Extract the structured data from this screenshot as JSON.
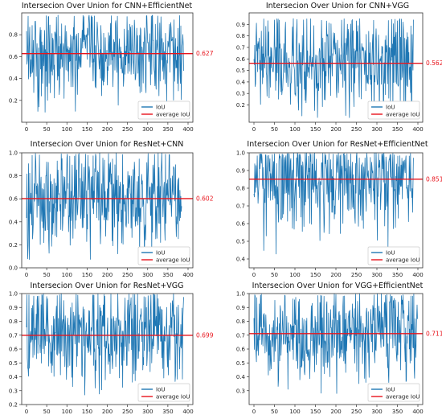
{
  "style": {
    "series_color": "#1f77b4",
    "average_color": "#e8141c",
    "average_label_color": "#e8141c"
  },
  "legend": {
    "series_label": "IoU",
    "average_label": "average IoU",
    "placement": "lower-right"
  },
  "chart_data": [
    {
      "type": "line",
      "title": "Intersecion Over Union for CNN+EfficientNet",
      "xlabel": "",
      "ylabel": "",
      "xlim": [
        0,
        400
      ],
      "ylim": [
        0.0,
        1.0
      ],
      "xticks": [
        "0",
        "50",
        "100",
        "150",
        "200",
        "250",
        "300",
        "350",
        "400"
      ],
      "yticks": [
        "0.2",
        "0.4",
        "0.6",
        "0.8"
      ],
      "average": 0.627,
      "average_label": "0.627",
      "n_points": 390,
      "min_value": 0.08,
      "max_value": 0.98,
      "series": [
        {
          "name": "IoU"
        },
        {
          "name": "average IoU"
        }
      ]
    },
    {
      "type": "line",
      "title": "Intersecion Over Union for CNN+VGG",
      "xlabel": "",
      "ylabel": "",
      "xlim": [
        0,
        400
      ],
      "ylim": [
        0.05,
        1.0
      ],
      "xticks": [
        "0",
        "50",
        "100",
        "150",
        "200",
        "250",
        "300",
        "350",
        "400"
      ],
      "yticks": [
        "0.2",
        "0.3",
        "0.4",
        "0.5",
        "0.6",
        "0.7",
        "0.8",
        "0.9"
      ],
      "average": 0.562,
      "average_label": "0.562",
      "n_points": 390,
      "min_value": 0.08,
      "max_value": 0.95,
      "series": [
        {
          "name": "IoU"
        },
        {
          "name": "average IoU"
        }
      ]
    },
    {
      "type": "line",
      "title": "Intersecion Over Union for ResNet+CNN",
      "xlabel": "",
      "ylabel": "",
      "xlim": [
        0,
        400
      ],
      "ylim": [
        0.0,
        1.0
      ],
      "xticks": [
        "0",
        "50",
        "100",
        "150",
        "200",
        "250",
        "300",
        "350",
        "400"
      ],
      "yticks": [
        "0.0",
        "0.2",
        "0.4",
        "0.6",
        "0.8",
        "1.0"
      ],
      "average": 0.602,
      "average_label": "0.602",
      "n_points": 385,
      "min_value": 0.05,
      "max_value": 1.0,
      "series": [
        {
          "name": "IoU"
        },
        {
          "name": "average IoU"
        }
      ]
    },
    {
      "type": "line",
      "title": "Intersecion Over Union for ResNet+EfficientNet",
      "xlabel": "",
      "ylabel": "",
      "xlim": [
        0,
        400
      ],
      "ylim": [
        0.35,
        1.0
      ],
      "xticks": [
        "0",
        "50",
        "100",
        "150",
        "200",
        "250",
        "300",
        "350",
        "400"
      ],
      "yticks": [
        "0.4",
        "0.5",
        "0.6",
        "0.7",
        "0.8",
        "0.9",
        "1.0"
      ],
      "average": 0.851,
      "average_label": "0.851",
      "n_points": 390,
      "min_value": 0.38,
      "max_value": 1.0,
      "series": [
        {
          "name": "IoU"
        },
        {
          "name": "average IoU"
        }
      ]
    },
    {
      "type": "line",
      "title": "Intersecion Over Union for ResNet+VGG",
      "xlabel": "",
      "ylabel": "",
      "xlim": [
        0,
        400
      ],
      "ylim": [
        0.2,
        1.0
      ],
      "xticks": [
        "0",
        "50",
        "100",
        "150",
        "200",
        "250",
        "300",
        "350",
        "400"
      ],
      "yticks": [
        "0.2",
        "0.3",
        "0.4",
        "0.5",
        "0.6",
        "0.7",
        "0.8",
        "0.9",
        "1.0"
      ],
      "average": 0.699,
      "average_label": "0.699",
      "n_points": 390,
      "min_value": 0.25,
      "max_value": 1.0,
      "series": [
        {
          "name": "IoU"
        },
        {
          "name": "average IoU"
        }
      ]
    },
    {
      "type": "line",
      "title": "Intersecion Over Union for VGG+EfficientNet",
      "xlabel": "",
      "ylabel": "",
      "xlim": [
        0,
        400
      ],
      "ylim": [
        0.2,
        1.0
      ],
      "xticks": [
        "0",
        "50",
        "100",
        "150",
        "200",
        "250",
        "300",
        "350",
        "400"
      ],
      "yticks": [
        "0.3",
        "0.4",
        "0.5",
        "0.6",
        "0.7",
        "0.8",
        "0.9",
        "1.0"
      ],
      "average": 0.711,
      "average_label": "0.711",
      "n_points": 400,
      "min_value": 0.26,
      "max_value": 1.0,
      "series": [
        {
          "name": "IoU"
        },
        {
          "name": "average IoU"
        }
      ]
    }
  ]
}
